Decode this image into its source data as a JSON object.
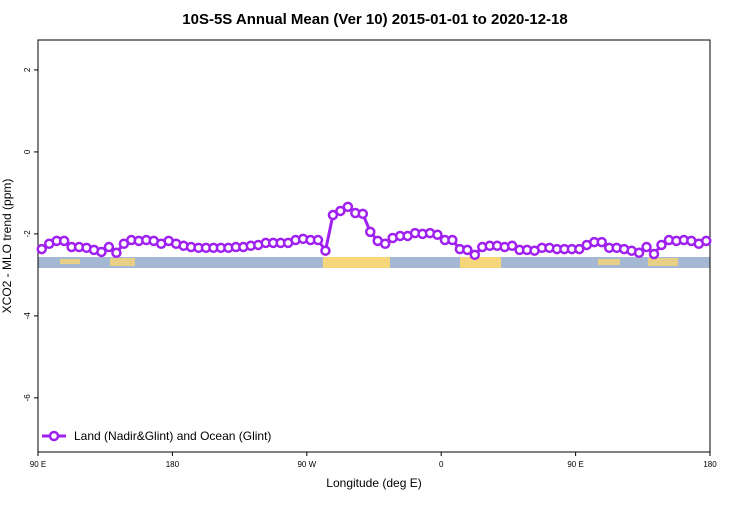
{
  "chart_data": {
    "type": "line",
    "title": "10S-5S Annual Mean (Ver 10)   2015-01-01 to 2020-12-18",
    "xlabel": "Longitude (deg E)",
    "ylabel": "XCO2 - MLO trend (ppm)",
    "xlim": [
      90,
      540
    ],
    "xticks": [
      {
        "value": 90,
        "label": "90 E"
      },
      {
        "value": 180,
        "label": "180"
      },
      {
        "value": 270,
        "label": "90 W"
      },
      {
        "value": 360,
        "label": "0"
      },
      {
        "value": 450,
        "label": "90 E"
      },
      {
        "value": 540,
        "label": "180"
      }
    ],
    "ylim": [
      -7.32,
      2.73
    ],
    "yticks": [
      2,
      0,
      -2,
      -4,
      -6
    ],
    "legend": "bottom-left",
    "x": [
      92.5,
      97.5,
      102.5,
      107.5,
      112.5,
      117.5,
      122.5,
      127.5,
      132.5,
      137.5,
      142.5,
      147.5,
      152.5,
      157.5,
      162.5,
      167.5,
      172.5,
      177.5,
      182.5,
      187.5,
      192.5,
      197.5,
      202.5,
      207.5,
      212.5,
      217.5,
      222.5,
      227.5,
      232.5,
      237.5,
      242.5,
      247.5,
      252.5,
      257.5,
      262.5,
      267.5,
      272.5,
      277.5,
      282.5,
      287.5,
      292.5,
      297.5,
      302.5,
      307.5,
      312.5,
      317.5,
      322.5,
      327.5,
      332.5,
      337.5,
      342.5,
      347.5,
      352.5,
      357.5,
      362.5,
      367.5,
      372.5,
      377.5,
      382.5,
      387.5,
      392.5,
      397.5,
      402.5,
      407.5,
      412.5,
      417.5,
      422.5,
      427.5,
      432.5,
      437.5,
      442.5,
      447.5,
      452.5,
      457.5,
      462.5,
      467.5,
      472.5,
      477.5,
      482.5,
      487.5,
      492.5,
      497.5,
      502.5,
      507.5,
      512.5,
      517.5,
      522.5,
      527.5,
      532.5,
      537.5
    ],
    "series": [
      {
        "name": "Land (Nadir&Glint) and Ocean (Glint)",
        "color": "#a020f0",
        "values": [
          -2.37,
          -2.24,
          -2.17,
          -2.17,
          -2.32,
          -2.32,
          -2.34,
          -2.39,
          -2.44,
          -2.32,
          -2.46,
          -2.24,
          -2.15,
          -2.17,
          -2.15,
          -2.17,
          -2.24,
          -2.17,
          -2.24,
          -2.29,
          -2.32,
          -2.34,
          -2.34,
          -2.34,
          -2.34,
          -2.34,
          -2.32,
          -2.32,
          -2.29,
          -2.27,
          -2.22,
          -2.22,
          -2.22,
          -2.22,
          -2.15,
          -2.12,
          -2.15,
          -2.15,
          -2.41,
          -1.54,
          -1.44,
          -1.34,
          -1.49,
          -1.51,
          -1.95,
          -2.17,
          -2.24,
          -2.1,
          -2.05,
          -2.05,
          -1.98,
          -2.0,
          -1.98,
          -2.02,
          -2.15,
          -2.15,
          -2.37,
          -2.39,
          -2.51,
          -2.32,
          -2.29,
          -2.29,
          -2.32,
          -2.29,
          -2.39,
          -2.39,
          -2.41,
          -2.34,
          -2.34,
          -2.37,
          -2.37,
          -2.37,
          -2.37,
          -2.27,
          -2.2,
          -2.2,
          -2.34,
          -2.34,
          -2.37,
          -2.41,
          -2.46,
          -2.32,
          -2.49,
          -2.27,
          -2.15,
          -2.17,
          -2.15,
          -2.17,
          -2.24,
          -2.17
        ]
      }
    ]
  }
}
